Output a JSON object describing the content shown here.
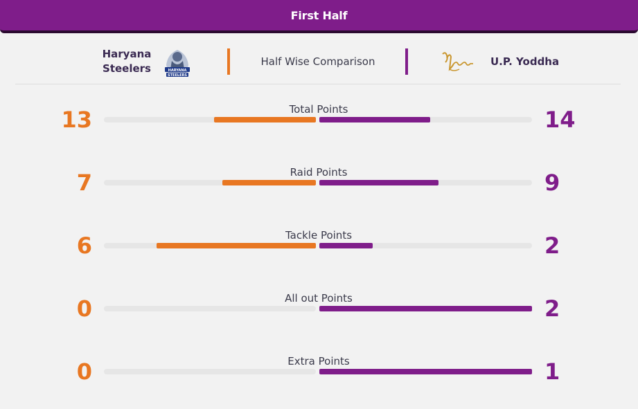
{
  "header": {
    "title": "First Half"
  },
  "teams": {
    "home": {
      "name_line1": "Haryana",
      "name_line2": "Steelers",
      "logo": "haryana-steelers-logo",
      "color": "#e87722"
    },
    "away": {
      "name": "U.P. Yoddha",
      "logo": "up-yoddha-logo",
      "color": "#7f1d8a"
    },
    "comparison_label": "Half Wise Comparison"
  },
  "stats": [
    {
      "label": "Total Points",
      "home": "13",
      "away": "14",
      "home_fraction": 0.48,
      "away_fraction": 0.52
    },
    {
      "label": "Raid Points",
      "home": "7",
      "away": "9",
      "home_fraction": 0.44,
      "away_fraction": 0.56
    },
    {
      "label": "Tackle Points",
      "home": "6",
      "away": "2",
      "home_fraction": 0.75,
      "away_fraction": 0.25
    },
    {
      "label": "All out Points",
      "home": "0",
      "away": "2",
      "home_fraction": 0,
      "away_fraction": 1
    },
    {
      "label": "Extra Points",
      "home": "0",
      "away": "1",
      "home_fraction": 0,
      "away_fraction": 1
    }
  ]
}
